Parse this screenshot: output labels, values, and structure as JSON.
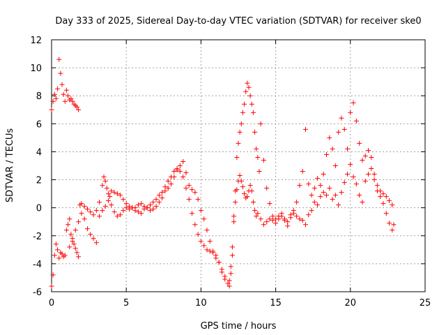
{
  "chart_data": {
    "type": "scatter",
    "title": "Day 333 of 2025, Sidereal Day-to-day VTEC variation (SDTVAR) for receiver ske0",
    "xlabel": "GPS time / hours",
    "ylabel": "SDTVAR / TECUs",
    "xlim": [
      0,
      25
    ],
    "ylim": [
      -6,
      12
    ],
    "xticks": [
      0,
      5,
      10,
      15,
      20,
      25
    ],
    "yticks": [
      -6,
      -4,
      -2,
      0,
      2,
      4,
      6,
      8,
      10,
      12
    ],
    "grid": true,
    "marker": "+",
    "color": "#ff0000",
    "series": [
      {
        "name": "SDTVAR",
        "x": [
          0.0,
          0.1,
          0.2,
          0.3,
          0.4,
          0.5,
          0.6,
          0.7,
          0.8,
          0.9,
          1.0,
          1.1,
          1.2,
          1.3,
          1.4,
          1.5,
          1.6,
          1.7,
          1.8,
          0.0,
          0.1,
          0.2,
          0.3,
          0.4,
          0.5,
          0.6,
          0.7,
          0.8,
          0.9,
          1.0,
          1.1,
          1.2,
          1.3,
          1.4,
          1.5,
          1.6,
          1.7,
          1.8,
          1.9,
          2.0,
          2.2,
          2.4,
          2.6,
          2.8,
          3.0,
          3.2,
          3.4,
          3.5,
          3.6,
          3.7,
          3.8,
          3.9,
          4.0,
          4.2,
          4.4,
          4.6,
          4.8,
          5.0,
          5.2,
          5.4,
          5.6,
          5.8,
          6.0,
          6.2,
          6.4,
          6.6,
          6.8,
          7.0,
          7.2,
          7.4,
          7.6,
          7.8,
          8.0,
          8.2,
          8.4,
          8.6,
          8.8,
          9.0,
          9.2,
          9.4,
          9.6,
          9.8,
          10.0,
          10.2,
          10.4,
          10.6,
          10.8,
          11.0,
          11.2,
          11.4,
          11.6,
          11.8,
          11.9,
          12.0,
          12.1,
          12.2,
          12.3,
          12.4,
          12.5,
          12.6,
          12.7,
          12.8,
          12.9,
          13.0,
          13.1,
          13.2,
          13.3,
          13.4,
          13.5,
          13.6,
          13.7,
          13.8,
          14.0,
          14.2,
          14.4,
          14.6,
          14.8,
          15.0,
          15.2,
          15.4,
          15.6,
          15.8,
          16.0,
          16.2,
          16.4,
          16.6,
          16.8,
          17.0,
          17.2,
          17.4,
          17.6,
          17.8,
          18.0,
          18.2,
          18.4,
          18.6,
          18.8,
          19.0,
          19.2,
          19.4,
          19.6,
          19.8,
          20.0,
          20.2,
          20.4,
          20.6,
          20.8,
          21.0,
          21.2,
          21.4,
          21.6,
          21.8,
          22.0,
          22.2,
          22.4,
          22.6,
          22.8,
          22.9,
          1.2,
          1.4,
          1.6,
          1.8,
          2.0,
          2.2,
          2.4,
          2.6,
          2.8,
          3.0,
          3.2,
          3.4,
          3.6,
          3.8,
          4.0,
          4.2,
          4.4,
          4.6,
          4.8,
          5.0,
          5.2,
          5.4,
          5.6,
          5.8,
          6.0,
          6.2,
          6.4,
          6.6,
          6.8,
          7.0,
          7.2,
          7.4,
          7.6,
          7.8,
          8.0,
          8.2,
          8.4,
          8.6,
          8.8,
          9.0,
          9.2,
          9.4,
          9.6,
          9.8,
          10.0,
          10.2,
          10.4,
          10.6,
          10.8,
          11.0,
          11.2,
          11.4,
          11.6,
          11.8,
          11.9,
          12.0,
          12.1,
          12.2,
          12.3,
          12.4,
          12.5,
          12.6,
          12.7,
          12.8,
          12.9,
          13.0,
          13.1,
          13.2,
          13.3,
          13.4,
          13.5,
          13.6,
          13.7,
          13.8,
          13.9,
          14.0,
          14.2,
          14.4,
          14.6,
          14.8,
          15.0,
          15.2,
          15.4,
          15.6,
          15.8,
          16.0,
          16.2,
          16.4,
          16.6,
          16.8,
          17.0,
          17.2,
          17.4,
          17.6,
          17.8,
          18.0,
          18.2,
          18.4,
          18.6,
          18.8,
          19.0,
          19.2,
          19.4,
          19.6,
          19.8,
          20.0,
          20.2,
          20.4,
          20.6,
          20.8,
          21.0,
          21.2,
          21.4,
          21.6,
          21.8,
          22.0,
          22.2,
          22.4,
          22.6,
          22.8
        ],
        "y": [
          7.0,
          7.6,
          8.1,
          7.8,
          8.5,
          10.6,
          9.6,
          8.8,
          8.1,
          7.6,
          8.4,
          8.0,
          7.7,
          7.8,
          7.6,
          7.4,
          7.3,
          7.2,
          7.0,
          -5.6,
          -4.8,
          -3.4,
          -2.6,
          -3.0,
          -3.6,
          -3.2,
          -3.3,
          -3.5,
          -3.4,
          -1.6,
          -1.2,
          -0.8,
          -1.9,
          -2.4,
          -2.6,
          -2.9,
          -3.2,
          -3.5,
          0.2,
          0.3,
          0.1,
          -0.1,
          -0.3,
          -0.5,
          -0.2,
          0.4,
          1.6,
          2.2,
          1.9,
          1.4,
          1.0,
          0.8,
          1.2,
          1.1,
          1.0,
          0.9,
          0.6,
          0.3,
          0.1,
          0.0,
          0.0,
          0.2,
          0.3,
          0.1,
          0.0,
          0.2,
          0.4,
          0.6,
          0.9,
          1.1,
          1.5,
          1.9,
          2.2,
          2.6,
          2.8,
          2.6,
          2.2,
          1.4,
          0.6,
          -0.4,
          -1.2,
          -1.9,
          -2.4,
          -2.7,
          -3.0,
          -3.1,
          -3.2,
          -3.4,
          -3.9,
          -4.6,
          -5.1,
          -5.4,
          -5.6,
          -4.2,
          -2.8,
          -1.0,
          0.4,
          1.3,
          1.9,
          2.3,
          1.9,
          1.5,
          1.0,
          0.7,
          0.8,
          1.2,
          1.6,
          1.2,
          0.4,
          -0.2,
          -0.6,
          -0.4,
          -0.8,
          -1.2,
          -1.0,
          -0.8,
          -0.9,
          -1.1,
          -0.8,
          -0.6,
          -0.8,
          -1.0,
          -0.7,
          -0.4,
          -0.6,
          -0.8,
          -0.9,
          -1.2,
          -0.5,
          -0.2,
          0.4,
          0.2,
          0.8,
          1.1,
          0.9,
          1.4,
          0.6,
          0.9,
          0.2,
          1.1,
          1.8,
          2.4,
          3.1,
          2.2,
          1.7,
          0.9,
          0.4,
          1.9,
          2.4,
          2.8,
          2.0,
          1.6,
          1.2,
          1.0,
          0.8,
          0.5,
          0.2,
          -1.2,
          -2.8,
          -2.2,
          -1.6,
          -1.0,
          -0.4,
          -0.8,
          -1.5,
          -1.9,
          -2.2,
          -2.5,
          -0.6,
          -0.2,
          0.1,
          0.5,
          0.2,
          -0.3,
          -0.6,
          -0.5,
          -0.2,
          0.0,
          -0.1,
          0.0,
          -0.2,
          -0.3,
          -0.4,
          -0.1,
          0.0,
          -0.2,
          -0.1,
          0.1,
          0.4,
          0.7,
          1.2,
          1.4,
          1.7,
          2.2,
          2.7,
          3.0,
          3.3,
          2.5,
          1.6,
          1.3,
          1.1,
          0.6,
          -0.2,
          -0.8,
          -1.6,
          -2.4,
          -3.1,
          -3.6,
          -3.9,
          -4.4,
          -4.9,
          -5.4,
          -5.2,
          -4.7,
          -3.4,
          -0.6,
          1.2,
          3.6,
          4.6,
          5.4,
          6.0,
          6.8,
          7.4,
          8.3,
          8.9,
          8.6,
          8.0,
          7.4,
          6.8,
          5.4,
          4.2,
          3.6,
          2.6,
          6.0,
          3.4,
          1.4,
          0.3,
          -0.6,
          -0.8,
          -0.6,
          -0.4,
          -0.9,
          -1.3,
          -0.5,
          -0.2,
          0.4,
          1.6,
          2.6,
          5.6,
          1.7,
          0.9,
          1.4,
          2.1,
          1.6,
          2.4,
          3.8,
          5.0,
          4.2,
          3.0,
          5.4,
          6.4,
          5.6,
          4.2,
          6.8,
          7.5,
          6.2,
          4.6,
          3.4,
          3.7,
          4.1,
          3.6,
          2.4,
          1.2,
          0.8,
          0.3,
          -0.4,
          -1.1,
          -1.6
        ]
      }
    ]
  }
}
